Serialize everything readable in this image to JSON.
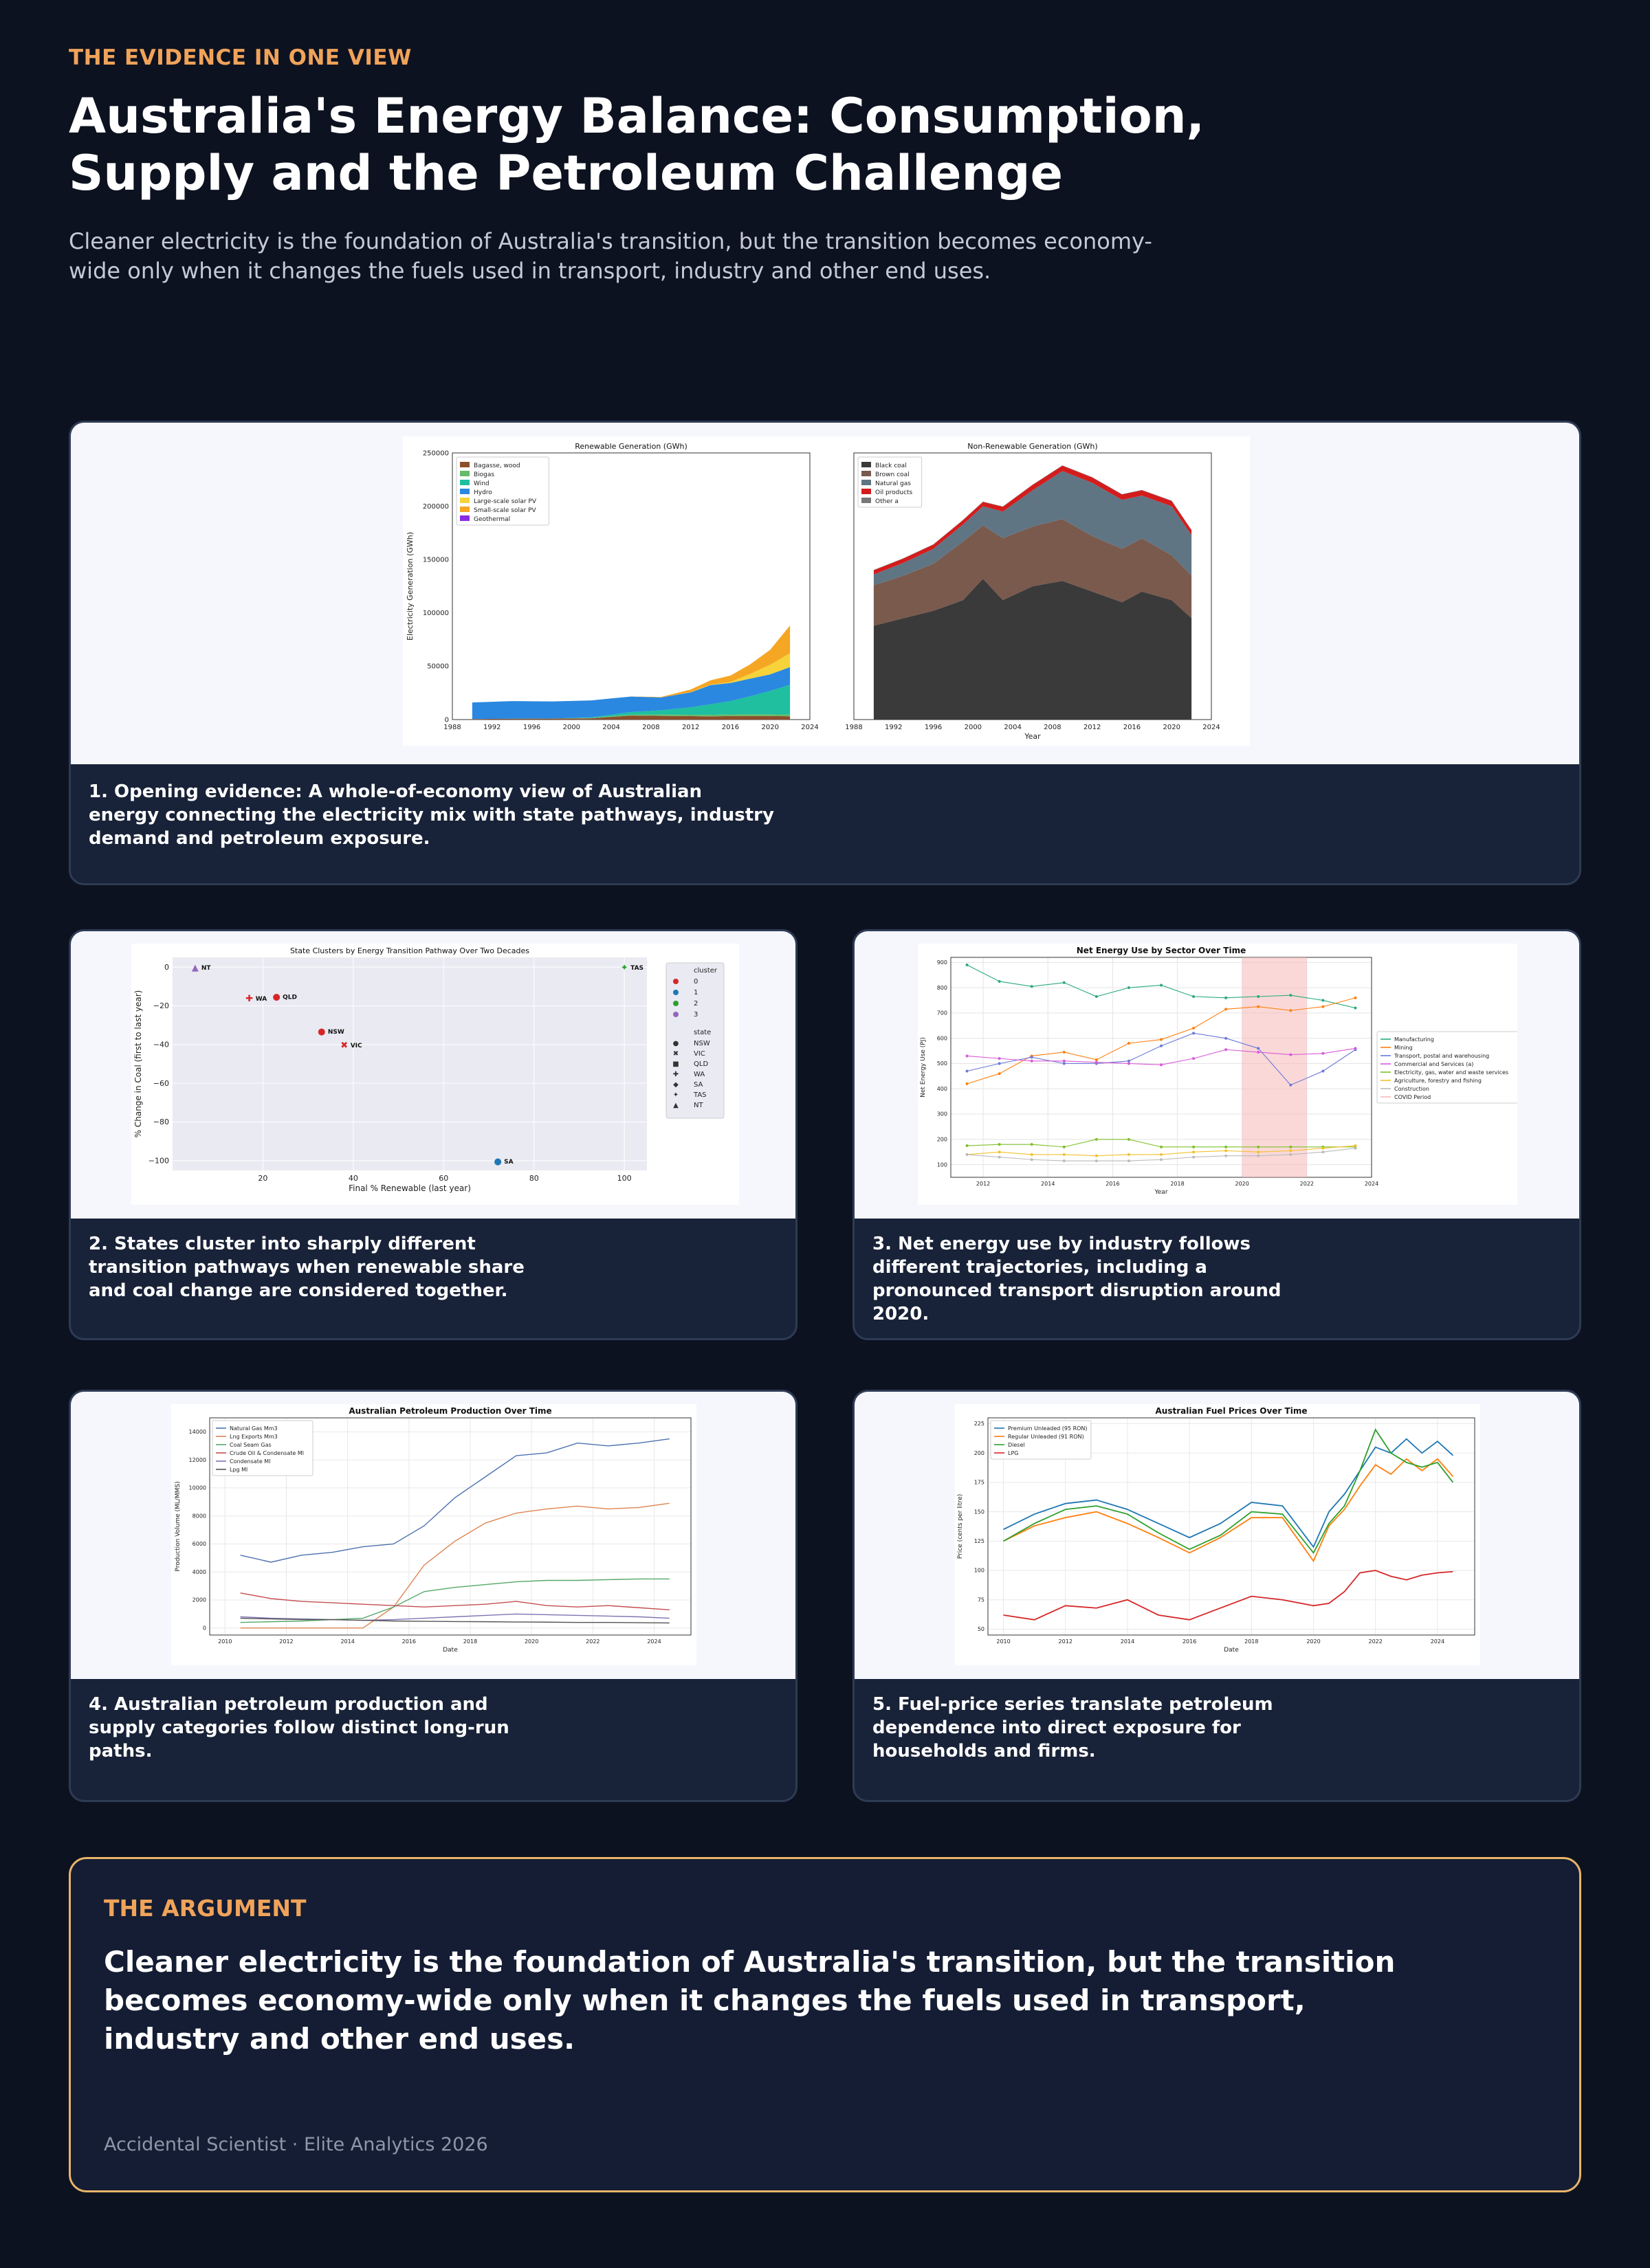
{
  "header": {
    "eyebrow": "THE EVIDENCE IN ONE VIEW",
    "title": "Australia's Energy Balance: Consumption, Supply and the Petroleum Challenge",
    "subtitle": "Cleaner electricity is the foundation of Australia's transition, but the transition becomes economy-wide only when it changes the fuels used in transport, industry and other end uses."
  },
  "cards": [
    {
      "caption": "1. Opening evidence: A whole-of-economy view of Australian energy connecting the electricity mix with state pathways, industry demand and petroleum exposure."
    },
    {
      "caption": "2. States cluster into sharply different transition pathways when renewable share and coal change are considered together."
    },
    {
      "caption": "3. Net energy use by industry follows different trajectories, including a pronounced transport disruption around 2020."
    },
    {
      "caption": "4. Australian petroleum production and supply categories follow distinct long-run paths."
    },
    {
      "caption": "5. Fuel-price series translate petroleum dependence into direct exposure for households and firms."
    }
  ],
  "argument": {
    "label": "THE ARGUMENT",
    "text": "Cleaner electricity is the foundation of Australia's transition, but the transition becomes economy-wide only when it changes the fuels used in transport, industry and other end uses.",
    "footer": "Accidental Scientist · Elite Analytics 2026"
  },
  "chart_data": [
    {
      "type": "area",
      "title": "Renewable Generation (GWh)",
      "ylabel": "Electricity Generation (GWh)",
      "xlabel": "",
      "xlim": [
        1988,
        2024
      ],
      "ylim": [
        0,
        250000
      ],
      "xticks": [
        1988,
        1992,
        1996,
        2000,
        2004,
        2008,
        2012,
        2016,
        2020,
        2024
      ],
      "yticks": [
        0,
        50000,
        100000,
        150000,
        200000,
        250000
      ],
      "legend": "top-left",
      "x": [
        1990,
        1994,
        1998,
        2002,
        2006,
        2009,
        2012,
        2014,
        2016,
        2018,
        2020,
        2022
      ],
      "series": [
        {
          "name": "Bagasse, wood",
          "color": "#8c4f2b",
          "values": [
            500,
            800,
            900,
            1200,
            3800,
            3500,
            3200,
            3000,
            3300,
            3400,
            3300,
            3100
          ]
        },
        {
          "name": "Biogas",
          "color": "#66bb6a",
          "values": [
            0,
            0,
            100,
            300,
            800,
            1200,
            1300,
            1400,
            1500,
            1500,
            1600,
            1600
          ]
        },
        {
          "name": "Wind",
          "color": "#1fbf9f",
          "values": [
            0,
            0,
            0,
            500,
            2500,
            4000,
            7000,
            10000,
            12500,
            17000,
            22000,
            28000
          ]
        },
        {
          "name": "Hydro",
          "color": "#2a88e0",
          "values": [
            15500,
            16500,
            16000,
            16000,
            14500,
            12000,
            14000,
            18000,
            17000,
            16500,
            15500,
            16500
          ]
        },
        {
          "name": "Large-scale solar PV",
          "color": "#f6d33b",
          "values": [
            0,
            0,
            0,
            0,
            0,
            0,
            200,
            400,
            900,
            4500,
            9000,
            13000
          ]
        },
        {
          "name": "Small-scale solar PV",
          "color": "#f5a623",
          "values": [
            0,
            0,
            0,
            0,
            100,
            500,
            2500,
            4000,
            6000,
            9000,
            14000,
            26000
          ]
        },
        {
          "name": "Geothermal",
          "color": "#8a2be2",
          "values": [
            0,
            0,
            0,
            0,
            0,
            0,
            0,
            0,
            0,
            0,
            0,
            0
          ]
        }
      ]
    },
    {
      "type": "area",
      "title": "Non-Renewable Generation (GWh)",
      "xlabel": "Year",
      "xlim": [
        1988,
        2024
      ],
      "ylim": [
        0,
        250000
      ],
      "xticks": [
        1988,
        1992,
        1996,
        2000,
        2004,
        2008,
        2012,
        2016,
        2020,
        2024
      ],
      "legend": "top-left",
      "x": [
        1990,
        1993,
        1996,
        1999,
        2001,
        2003,
        2006,
        2009,
        2012,
        2015,
        2017,
        2020,
        2022
      ],
      "series": [
        {
          "name": "Black coal",
          "color": "#3a3a3a",
          "values": [
            88000,
            95000,
            102000,
            112000,
            132000,
            112000,
            125000,
            130000,
            120000,
            110000,
            120000,
            112000,
            95000
          ]
        },
        {
          "name": "Brown coal",
          "color": "#7a5a4d",
          "values": [
            38000,
            40000,
            44000,
            55000,
            50000,
            58000,
            56000,
            58000,
            52000,
            50000,
            50000,
            42000,
            40000
          ]
        },
        {
          "name": "Natural gas",
          "color": "#5f7584",
          "values": [
            10000,
            12000,
            14000,
            16000,
            18000,
            25000,
            34000,
            45000,
            50000,
            46000,
            40000,
            46000,
            38000
          ]
        },
        {
          "name": "Oil products",
          "color": "#d51c1c",
          "values": [
            4000,
            4000,
            4000,
            4000,
            4000,
            4500,
            5000,
            5000,
            5000,
            5000,
            5000,
            5000,
            4500
          ]
        },
        {
          "name": "Other a",
          "color": "#777777",
          "values": [
            300,
            300,
            300,
            300,
            300,
            300,
            300,
            300,
            300,
            300,
            300,
            300,
            300
          ]
        }
      ]
    },
    {
      "type": "scatter",
      "title": "State Clusters by Energy Transition Pathway Over Two Decades",
      "xlabel": "Final % Renewable (last year)",
      "ylabel": "% Change in Coal (first to last year)",
      "xlim": [
        0,
        105
      ],
      "ylim": [
        -105,
        5
      ],
      "xticks": [
        20,
        40,
        60,
        80,
        100
      ],
      "yticks": [
        0,
        -20,
        -40,
        -60,
        -80,
        -100
      ],
      "legend": "right",
      "legend_cluster_title": "cluster",
      "legend_state_title": "state",
      "clusters": [
        {
          "name": "0",
          "color": "#d62728"
        },
        {
          "name": "1",
          "color": "#1f77b4"
        },
        {
          "name": "2",
          "color": "#2ca02c"
        },
        {
          "name": "3",
          "color": "#9467bd"
        }
      ],
      "states": [
        "NSW",
        "VIC",
        "QLD",
        "WA",
        "SA",
        "TAS",
        "NT"
      ],
      "points": [
        {
          "state": "NT",
          "x": 5,
          "y": 0,
          "cluster": "3",
          "marker": "▲"
        },
        {
          "state": "TAS",
          "x": 100,
          "y": 0,
          "cluster": "2",
          "marker": "✦"
        },
        {
          "state": "WA",
          "x": 17,
          "y": -16,
          "cluster": "0",
          "marker": "✚"
        },
        {
          "state": "QLD",
          "x": 23,
          "y": -15,
          "cluster": "0",
          "marker": "●"
        },
        {
          "state": "NSW",
          "x": 33,
          "y": -33,
          "cluster": "0",
          "marker": "●"
        },
        {
          "state": "VIC",
          "x": 38,
          "y": -40,
          "cluster": "0",
          "marker": "✖"
        },
        {
          "state": "SA",
          "x": 72,
          "y": -100,
          "cluster": "1",
          "marker": "●"
        }
      ]
    },
    {
      "type": "line",
      "title": "Net Energy Use by Sector Over Time",
      "xlabel": "Year",
      "ylabel": "Net Energy Use (PJ)",
      "xlim": [
        2011,
        2024
      ],
      "ylim": [
        50,
        920
      ],
      "xticks": [
        2012,
        2014,
        2016,
        2018,
        2020,
        2022,
        2024
      ],
      "yticks": [
        100,
        200,
        300,
        400,
        500,
        600,
        700,
        800,
        900
      ],
      "legend": "right",
      "covid_period": [
        2020,
        2022
      ],
      "x": [
        2011.5,
        2012.5,
        2013.5,
        2014.5,
        2015.5,
        2016.5,
        2017.5,
        2018.5,
        2019.5,
        2020.5,
        2021.5,
        2022.5,
        2023.5
      ],
      "series": [
        {
          "name": "Manufacturing",
          "color": "#2aaa7a",
          "values": [
            890,
            825,
            805,
            820,
            765,
            800,
            810,
            765,
            760,
            765,
            770,
            750,
            720
          ]
        },
        {
          "name": "Mining",
          "color": "#ff7f0e",
          "values": [
            420,
            460,
            530,
            545,
            515,
            580,
            595,
            640,
            715,
            725,
            710,
            725,
            760
          ]
        },
        {
          "name": "Transport, postal and warehousing",
          "color": "#6b79d8",
          "values": [
            470,
            500,
            525,
            500,
            500,
            510,
            570,
            620,
            600,
            560,
            415,
            470,
            555
          ]
        },
        {
          "name": "Commercial and Services (a)",
          "color": "#d85ad8",
          "values": [
            530,
            520,
            510,
            510,
            505,
            500,
            495,
            520,
            555,
            545,
            535,
            540,
            560
          ]
        },
        {
          "name": "Electricity, gas, water and waste services",
          "color": "#7fbf2a",
          "values": [
            175,
            180,
            180,
            170,
            200,
            200,
            170,
            170,
            170,
            170,
            170,
            170,
            170
          ]
        },
        {
          "name": "Agriculture, forestry and fishing",
          "color": "#f2c12e",
          "values": [
            140,
            150,
            140,
            140,
            135,
            140,
            140,
            150,
            155,
            150,
            155,
            165,
            175
          ]
        },
        {
          "name": "Construction",
          "color": "#bbbbbb",
          "values": [
            140,
            130,
            120,
            115,
            115,
            115,
            120,
            130,
            135,
            135,
            140,
            150,
            165
          ]
        }
      ]
    },
    {
      "type": "line",
      "title": "Australian Petroleum Production Over Time",
      "xlabel": "Date",
      "ylabel": "Production Volume (ML/MMS)",
      "xlim": [
        2009.5,
        2025.2
      ],
      "ylim": [
        -500,
        15000
      ],
      "xticks": [
        2010,
        2012,
        2014,
        2016,
        2018,
        2020,
        2022,
        2024
      ],
      "yticks": [
        0,
        2000,
        4000,
        6000,
        8000,
        10000,
        12000,
        14000
      ],
      "legend": "top-left",
      "x": [
        2010.5,
        2011.5,
        2012.5,
        2013.5,
        2014.5,
        2015.5,
        2016.5,
        2017.5,
        2018.5,
        2019.5,
        2020.5,
        2021.5,
        2022.5,
        2023.5,
        2024.5
      ],
      "series": [
        {
          "name": "Natural Gas Mm3",
          "color": "#4c72b0",
          "values": [
            5200,
            4700,
            5200,
            5400,
            5800,
            6000,
            7300,
            9300,
            10800,
            12300,
            12500,
            13200,
            13000,
            13200,
            13500
          ]
        },
        {
          "name": "Lng Exports Mm3",
          "color": "#dd8452",
          "values": [
            0,
            0,
            0,
            0,
            0,
            1500,
            4500,
            6200,
            7500,
            8200,
            8500,
            8700,
            8500,
            8600,
            8900
          ]
        },
        {
          "name": "Coal Seam Gas",
          "color": "#55a868",
          "values": [
            400,
            450,
            500,
            600,
            700,
            1500,
            2600,
            2900,
            3100,
            3300,
            3400,
            3400,
            3450,
            3500,
            3500
          ]
        },
        {
          "name": "Crude Oil & Condensate Ml",
          "color": "#c44e52",
          "values": [
            2500,
            2100,
            1900,
            1800,
            1700,
            1600,
            1500,
            1600,
            1700,
            1900,
            1600,
            1500,
            1600,
            1450,
            1300
          ]
        },
        {
          "name": "Condensate Ml",
          "color": "#8172b3",
          "values": [
            800,
            700,
            650,
            600,
            550,
            600,
            700,
            800,
            900,
            1000,
            950,
            900,
            850,
            800,
            700
          ]
        },
        {
          "name": "Lpg Ml",
          "color": "#555555",
          "values": [
            700,
            650,
            600,
            600,
            550,
            500,
            480,
            460,
            450,
            430,
            420,
            400,
            400,
            380,
            360
          ]
        }
      ]
    },
    {
      "type": "line",
      "title": "Australian Fuel Prices Over Time",
      "xlabel": "Date",
      "ylabel": "Price (cents per litre)",
      "xlim": [
        2009.5,
        2025.2
      ],
      "ylim": [
        45,
        230
      ],
      "xticks": [
        2010,
        2012,
        2014,
        2016,
        2018,
        2020,
        2022,
        2024
      ],
      "yticks": [
        50,
        75,
        100,
        125,
        150,
        175,
        200,
        225
      ],
      "legend": "top-left",
      "x": [
        2010,
        2011,
        2012,
        2013,
        2014,
        2015,
        2016,
        2017,
        2018,
        2019,
        2020,
        2020.5,
        2021,
        2021.5,
        2022,
        2022.5,
        2023,
        2023.5,
        2024,
        2024.5
      ],
      "series": [
        {
          "name": "Premium Unleaded (95 RON)",
          "color": "#1f77b4",
          "values": [
            135,
            148,
            157,
            160,
            152,
            140,
            128,
            140,
            158,
            155,
            120,
            150,
            165,
            185,
            205,
            200,
            212,
            200,
            210,
            198
          ]
        },
        {
          "name": "Regular Unleaded (91 RON)",
          "color": "#ff7f0e",
          "values": [
            125,
            138,
            145,
            150,
            140,
            128,
            115,
            128,
            145,
            145,
            108,
            138,
            152,
            172,
            190,
            182,
            195,
            185,
            195,
            180
          ]
        },
        {
          "name": "Diesel",
          "color": "#2ca02c",
          "values": [
            125,
            140,
            152,
            155,
            148,
            132,
            118,
            130,
            150,
            148,
            115,
            140,
            155,
            185,
            220,
            200,
            192,
            188,
            192,
            175
          ]
        },
        {
          "name": "LPG",
          "color": "#d62728",
          "values": [
            62,
            58,
            70,
            68,
            75,
            62,
            58,
            68,
            78,
            75,
            70,
            72,
            82,
            98,
            100,
            95,
            92,
            96,
            98,
            99
          ]
        }
      ]
    }
  ]
}
